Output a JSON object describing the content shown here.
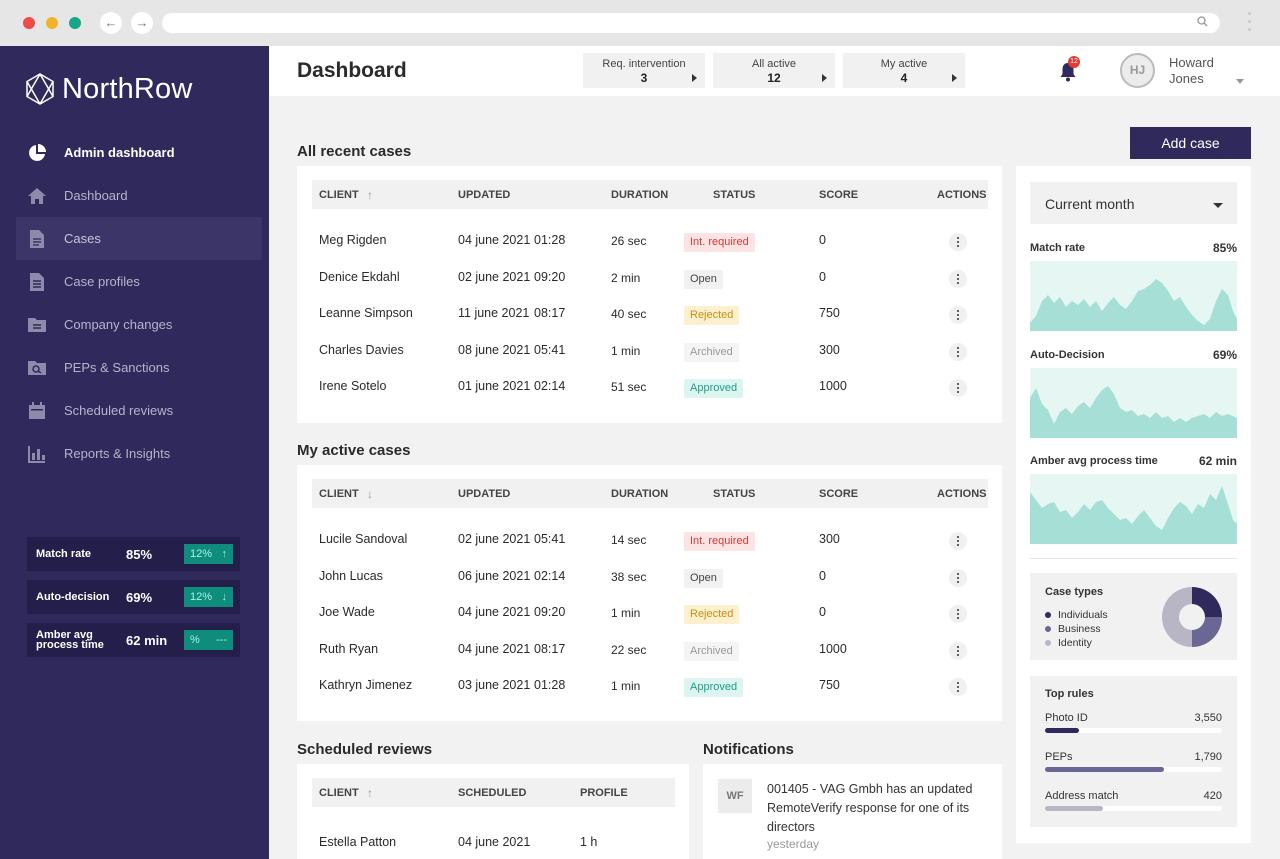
{
  "app": {
    "name": "NorthRow"
  },
  "sidebar": {
    "items": [
      {
        "label": "Admin dashboard",
        "icon": "pie-chart-icon"
      },
      {
        "label": "Dashboard",
        "icon": "home-icon"
      },
      {
        "label": "Cases",
        "icon": "document-icon"
      },
      {
        "label": "Case profiles",
        "icon": "profile-document-icon"
      },
      {
        "label": "Company changes",
        "icon": "folder-swap-icon"
      },
      {
        "label": "PEPs & Sanctions",
        "icon": "folder-search-icon"
      },
      {
        "label": "Scheduled reviews",
        "icon": "calendar-icon"
      },
      {
        "label": "Reports & Insights",
        "icon": "bar-chart-icon"
      }
    ],
    "stats": [
      {
        "label": "Match rate",
        "value": "85%",
        "change": "12%",
        "arrow": "↑"
      },
      {
        "label": "Auto-decision",
        "value": "69%",
        "change": "12%",
        "arrow": "↓"
      },
      {
        "label": "Amber avg process time",
        "value": "62 min",
        "change": "%",
        "arrow": "---"
      }
    ]
  },
  "header": {
    "title": "Dashboard",
    "pills": [
      {
        "label": "Req. intervention",
        "count": "3"
      },
      {
        "label": "All active",
        "count": "12"
      },
      {
        "label": "My active",
        "count": "4"
      }
    ],
    "notifications_count": "12",
    "user": {
      "initials": "HJ",
      "first": "Howard",
      "last": "Jones"
    }
  },
  "add_case_label": "Add case",
  "recent": {
    "title": "All recent cases",
    "columns": [
      "CLIENT",
      "UPDATED",
      "DURATION",
      "STATUS",
      "SCORE",
      "ACTIONS"
    ],
    "sort_arrow": "↑",
    "rows": [
      {
        "client": "Meg Rigden",
        "date": "04 june 2021",
        "time": "01:28",
        "duration": "26 sec",
        "status": "Int. required",
        "kind": "int",
        "score": "0"
      },
      {
        "client": "Denice Ekdahl",
        "date": "02 june 2021",
        "time": "09:20",
        "duration": "2 min",
        "status": "Open",
        "kind": "open",
        "score": "0"
      },
      {
        "client": "Leanne Simpson",
        "date": "11 june 2021",
        "time": "08:17",
        "duration": "40 sec",
        "status": "Rejected",
        "kind": "rej",
        "score": "750"
      },
      {
        "client": "Charles Davies",
        "date": "08 june 2021",
        "time": "05:41",
        "duration": "1 min",
        "status": "Archived",
        "kind": "arc",
        "score": "300"
      },
      {
        "client": "Irene Sotelo",
        "date": "01 june 2021",
        "time": "02:14",
        "duration": "51 sec",
        "status": "Approved",
        "kind": "app",
        "score": "1000"
      }
    ]
  },
  "active": {
    "title": "My active cases",
    "columns": [
      "CLIENT",
      "UPDATED",
      "DURATION",
      "STATUS",
      "SCORE",
      "ACTIONS"
    ],
    "sort_arrow": "↓",
    "rows": [
      {
        "client": "Lucile Sandoval",
        "date": "02 june 2021",
        "time": "05:41",
        "duration": "14 sec",
        "status": "Int. required",
        "kind": "int",
        "score": "300"
      },
      {
        "client": "John Lucas",
        "date": "06 june 2021",
        "time": "02:14",
        "duration": "38 sec",
        "status": "Open",
        "kind": "open",
        "score": "0"
      },
      {
        "client": "Joe Wade",
        "date": "04 june 2021",
        "time": "09:20",
        "duration": "1 min",
        "status": "Rejected",
        "kind": "rej",
        "score": "0"
      },
      {
        "client": "Ruth Ryan",
        "date": "04 june 2021",
        "time": "08:17",
        "duration": "22 sec",
        "status": "Archived",
        "kind": "arc",
        "score": "1000"
      },
      {
        "client": "Kathryn Jimenez",
        "date": "03 june 2021",
        "time": "01:28",
        "duration": "1 min",
        "status": "Approved",
        "kind": "app",
        "score": "750"
      }
    ]
  },
  "scheduled": {
    "title": "Scheduled reviews",
    "columns": [
      "CLIENT",
      "SCHEDULED",
      "PROFILE"
    ],
    "sort_arrow": "↑",
    "rows": [
      {
        "client": "Estella Patton",
        "date": "04 june 2021",
        "profile": "1 h"
      }
    ]
  },
  "notifications": {
    "title": "Notifications",
    "items": [
      {
        "initials": "WF",
        "text": "001405 - VAG Gmbh has an updated RemoteVerify response for one of its directors",
        "time": "yesterday"
      }
    ]
  },
  "panel": {
    "period": "Current month",
    "metrics": [
      {
        "label": "Match rate",
        "value": "85%"
      },
      {
        "label": "Auto-Decision",
        "value": "69%"
      },
      {
        "label": "Amber avg process time",
        "value": "62 min"
      }
    ],
    "case_types": {
      "title": "Case types",
      "items": [
        {
          "label": "Individuals",
          "color": "#2f2a5b",
          "share": 0.25
        },
        {
          "label": "Business",
          "color": "#6b6794",
          "share": 0.25
        },
        {
          "label": "Identity",
          "color": "#b8b6c4",
          "share": 0.5
        }
      ]
    },
    "top_rules": {
      "title": "Top rules",
      "items": [
        {
          "label": "Photo ID",
          "value": "3,550",
          "fill": 0.19,
          "color": "#2f2a5b"
        },
        {
          "label": "PEPs",
          "value": "1,790",
          "fill": 0.67,
          "color": "#6b6794"
        },
        {
          "label": "Address match",
          "value": "420",
          "fill": 0.33,
          "color": "#b8b6c4"
        }
      ]
    }
  }
}
